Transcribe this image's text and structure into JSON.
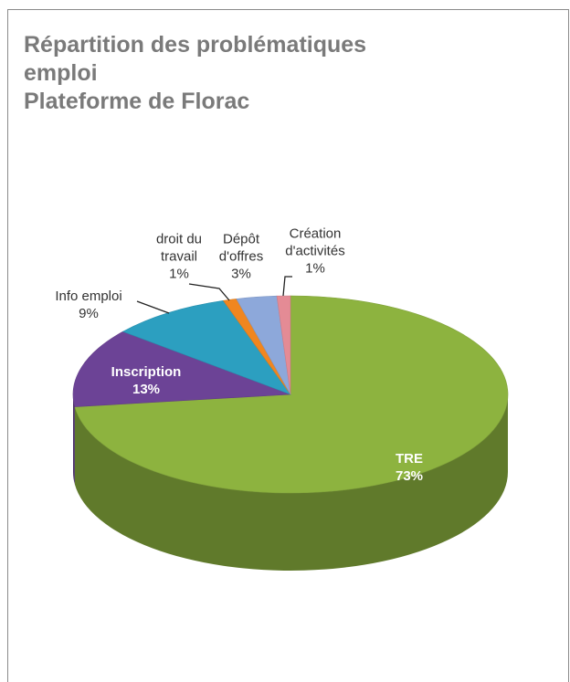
{
  "chart_data": {
    "type": "pie",
    "title": "Répartition des problématiques emploi",
    "subtitle": "Plateforme de Florac",
    "categories": [
      "TRE",
      "Inscription",
      "Info emploi",
      "droit du travail",
      "Dépôt d'offres",
      "Création d'activités"
    ],
    "values": [
      73,
      13,
      9,
      1,
      3,
      1
    ],
    "value_labels": [
      "73%",
      "13%",
      "9%",
      "1%",
      "3%",
      "1%"
    ],
    "colors": [
      "#8db33f",
      "#6c4396",
      "#2c9fc0",
      "#f0861f",
      "#8da8da",
      "#e48b95"
    ]
  }
}
